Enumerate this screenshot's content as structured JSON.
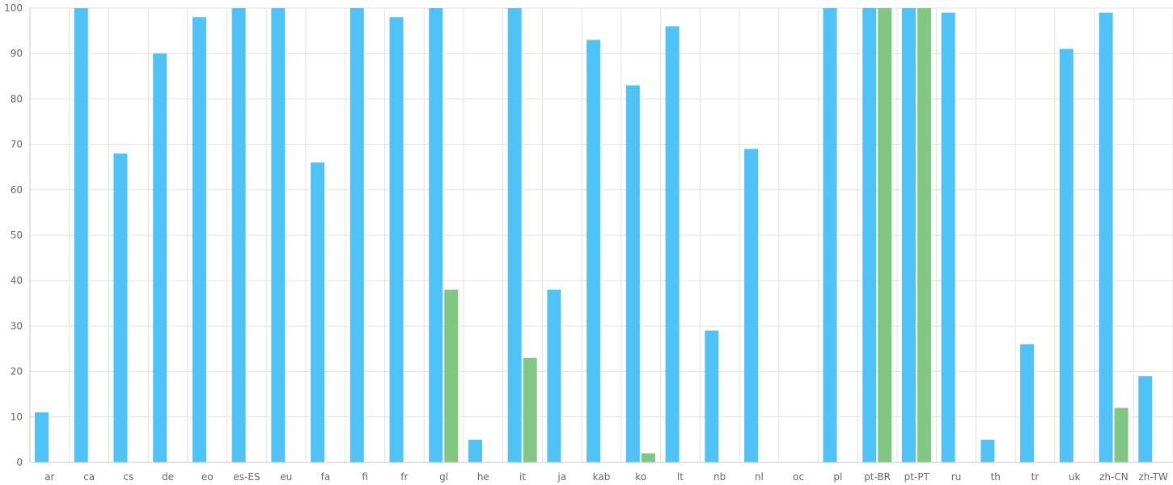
{
  "chart_data": {
    "type": "bar",
    "categories": [
      "ar",
      "ca",
      "cs",
      "de",
      "eo",
      "es-ES",
      "eu",
      "fa",
      "fi",
      "fr",
      "gl",
      "he",
      "it",
      "ja",
      "kab",
      "ko",
      "lt",
      "nb",
      "nl",
      "oc",
      "pl",
      "pt-BR",
      "pt-PT",
      "ru",
      "th",
      "tr",
      "uk",
      "zh-CN",
      "zh-TW"
    ],
    "series": [
      {
        "color": "#4fc3f7",
        "values": [
          11,
          100,
          68,
          90,
          98,
          100,
          100,
          66,
          100,
          98,
          100,
          5,
          100,
          38,
          93,
          83,
          96,
          29,
          69,
          0,
          100,
          100,
          100,
          99,
          5,
          26,
          91,
          99,
          19
        ]
      },
      {
        "color": "#81c784",
        "values": [
          0,
          0,
          0,
          0,
          0,
          0,
          0,
          0,
          0,
          0,
          38,
          0,
          23,
          0,
          0,
          2,
          0,
          0,
          0,
          0,
          0,
          100,
          100,
          0,
          0,
          0,
          0,
          12,
          0
        ]
      }
    ],
    "ylim": [
      0,
      100
    ],
    "yticks": [
      0,
      10,
      20,
      30,
      40,
      50,
      60,
      70,
      80,
      90,
      100
    ],
    "grid": true,
    "xlabel": "",
    "ylabel": "",
    "title": ""
  }
}
